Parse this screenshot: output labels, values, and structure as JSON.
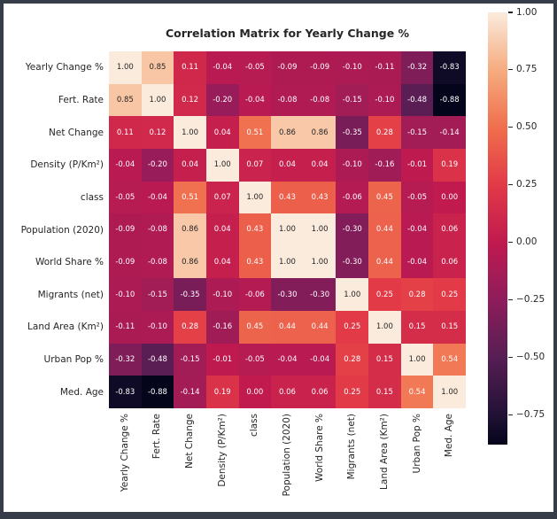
{
  "page": {
    "background_color": "#363C48",
    "figure_background_color": "#FFFFFF",
    "text_color": "#262626"
  },
  "chart_data": {
    "type": "heatmap",
    "title": "Correlation Matrix for Yearly Change %",
    "categories": [
      "Yearly Change %",
      "Fert. Rate",
      "Net Change",
      "Density (P/Km²)",
      "class",
      "Population (2020)",
      "World Share %",
      "Migrants (net)",
      "Land Area (Km²)",
      "Urban Pop %",
      "Med. Age"
    ],
    "matrix": [
      [
        1.0,
        0.85,
        0.11,
        -0.04,
        -0.05,
        -0.09,
        -0.09,
        -0.1,
        -0.11,
        -0.32,
        -0.83
      ],
      [
        0.85,
        1.0,
        0.12,
        -0.2,
        -0.04,
        -0.08,
        -0.08,
        -0.15,
        -0.1,
        -0.48,
        -0.88
      ],
      [
        0.11,
        0.12,
        1.0,
        0.04,
        0.51,
        0.86,
        0.86,
        -0.35,
        0.28,
        -0.15,
        -0.14
      ],
      [
        -0.04,
        -0.2,
        0.04,
        1.0,
        0.07,
        0.04,
        0.04,
        -0.1,
        -0.16,
        -0.01,
        0.19
      ],
      [
        -0.05,
        -0.04,
        0.51,
        0.07,
        1.0,
        0.43,
        0.43,
        -0.06,
        0.45,
        -0.05,
        0.0
      ],
      [
        -0.09,
        -0.08,
        0.86,
        0.04,
        0.43,
        1.0,
        1.0,
        -0.3,
        0.44,
        -0.04,
        0.06
      ],
      [
        -0.09,
        -0.08,
        0.86,
        0.04,
        0.43,
        1.0,
        1.0,
        -0.3,
        0.44,
        -0.04,
        0.06
      ],
      [
        -0.1,
        -0.15,
        -0.35,
        -0.1,
        -0.06,
        -0.3,
        -0.3,
        1.0,
        0.25,
        0.28,
        0.25
      ],
      [
        -0.11,
        -0.1,
        0.28,
        -0.16,
        0.45,
        0.44,
        0.44,
        0.25,
        1.0,
        0.15,
        0.15
      ],
      [
        -0.32,
        -0.48,
        -0.15,
        -0.01,
        -0.05,
        -0.04,
        -0.04,
        0.28,
        0.15,
        1.0,
        0.54
      ],
      [
        -0.83,
        -0.88,
        -0.14,
        0.19,
        0.0,
        0.06,
        0.06,
        0.25,
        0.15,
        0.54,
        1.0
      ]
    ],
    "vmin": -0.88,
    "vmax": 1.0,
    "annotation_decimals": 2,
    "colormap": {
      "name": "rocket",
      "anchors": [
        [
          -0.88,
          "#04051A"
        ],
        [
          -0.75,
          "#211236"
        ],
        [
          -0.5,
          "#571E53"
        ],
        [
          -0.25,
          "#8E1D5B"
        ],
        [
          0.0,
          "#C01A4F"
        ],
        [
          0.25,
          "#E23A47"
        ],
        [
          0.5,
          "#F06F4D"
        ],
        [
          0.75,
          "#F6AC80"
        ],
        [
          1.0,
          "#FAEBDD"
        ]
      ]
    },
    "annotation_text_dark": "#262626",
    "annotation_text_light": "#FFFFFF",
    "colorbar": {
      "position": "right",
      "ticks": [
        {
          "label": "1.00",
          "value": 1.0
        },
        {
          "label": "0.75",
          "value": 0.75
        },
        {
          "label": "0.50",
          "value": 0.5
        },
        {
          "label": "0.25",
          "value": 0.25
        },
        {
          "label": "0.00",
          "value": 0.0
        },
        {
          "label": "−0.25",
          "value": -0.25
        },
        {
          "label": "−0.50",
          "value": -0.5
        },
        {
          "label": "−0.75",
          "value": -0.75
        }
      ]
    },
    "grid": false,
    "legend_position": "none"
  }
}
